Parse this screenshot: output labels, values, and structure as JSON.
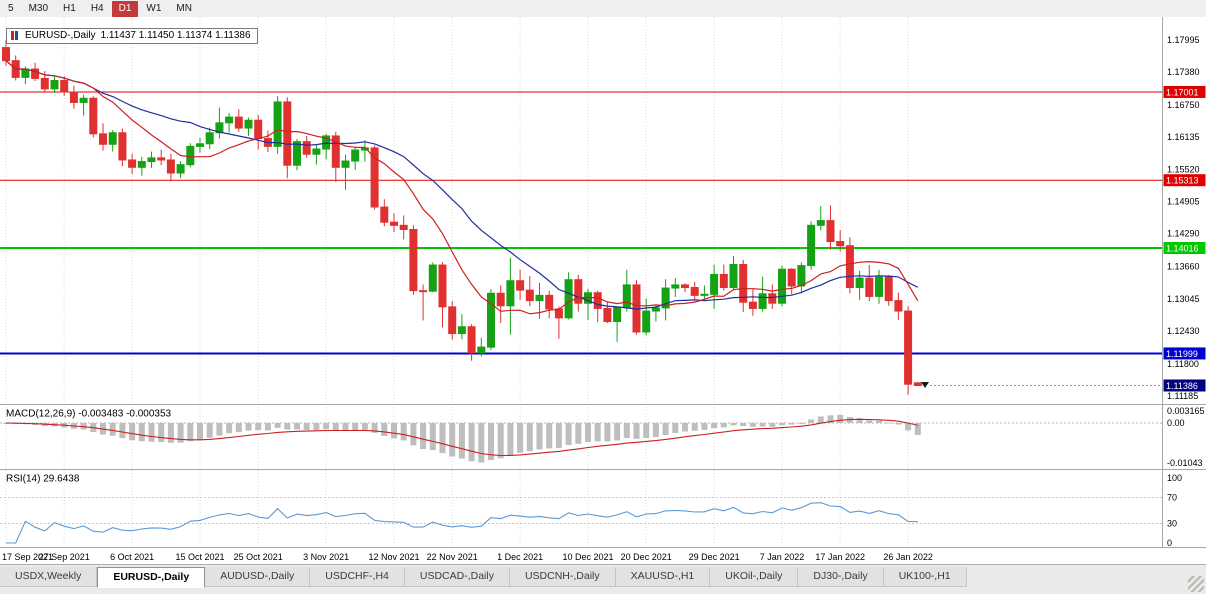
{
  "toolbar": {
    "buttons": [
      {
        "label": "5",
        "active": false
      },
      {
        "label": "M30",
        "active": false
      },
      {
        "label": "H1",
        "active": false
      },
      {
        "label": "H4",
        "active": false
      },
      {
        "label": "D1",
        "active": true
      },
      {
        "label": "W1",
        "active": false
      },
      {
        "label": "MN",
        "active": false
      }
    ]
  },
  "tooltip": {
    "symbol": "EURUSD-,Daily",
    "ohlc": "1.11437 1.11450 1.11374 1.11386"
  },
  "tabs": [
    {
      "label": "USDX,Weekly",
      "active": false
    },
    {
      "label": "EURUSD-,Daily",
      "active": true
    },
    {
      "label": "AUDUSD-,Daily",
      "active": false
    },
    {
      "label": "USDCHF-,H4",
      "active": false
    },
    {
      "label": "USDCAD-,Daily",
      "active": false
    },
    {
      "label": "USDCNH-,Daily",
      "active": false
    },
    {
      "label": "XAUUSD-,H1",
      "active": false
    },
    {
      "label": "UKOil-,Daily",
      "active": false
    },
    {
      "label": "DJ30-,Daily",
      "active": false
    },
    {
      "label": "UK100-,H1",
      "active": false
    }
  ],
  "colors": {
    "candle_up": "#15A215",
    "candle_down": "#E03030",
    "ma_fast": "#CC2020",
    "ma_slow": "#1F2DA0",
    "macd_hist": "#BEBEBE",
    "macd_signal": "#CC2020",
    "rsi_line": "#5B9BD5",
    "grid": "#DCDCDC",
    "separator": "#A8A8A8",
    "axis_text": "#000000"
  },
  "chart_data": {
    "type": "candlestick",
    "symbol": "EURUSD-",
    "period": "Daily",
    "current_bar": {
      "open": "1.11437",
      "high": "1.11450",
      "low": "1.11374",
      "close": "1.11386"
    },
    "price_axis": {
      "labels": [
        "1.17995",
        "1.17380",
        "1.16750",
        "1.16135",
        "1.15520",
        "1.14905",
        "1.14290",
        "1.13660",
        "1.13045",
        "1.12430",
        "1.11800",
        "1.11185"
      ],
      "top_value": 1.17995,
      "bottom_value": 1.11185
    },
    "levels": [
      {
        "value": 1.17001,
        "tag": "1.17001",
        "color": "#E00000",
        "width": 1
      },
      {
        "value": 1.15313,
        "tag": "1.15313",
        "color": "#E00000",
        "width": 1
      },
      {
        "value": 1.14016,
        "tag": "1.14016",
        "color": "#00C800",
        "width": 2
      },
      {
        "value": 1.11999,
        "tag": "1.11999",
        "color": "#0000D2",
        "width": 2
      }
    ],
    "current_price": {
      "value": 1.11386,
      "tag": "1.11386",
      "tag_color": "#000080"
    },
    "moving_averages": [
      {
        "name": "fast",
        "period": 10,
        "color": "#CC2020"
      },
      {
        "name": "slow",
        "period": 20,
        "color": "#1F2DA0"
      }
    ],
    "macd": {
      "title": "MACD(12,26,9)",
      "values": "-0.003483 -0.000353",
      "fast": 12,
      "slow": 26,
      "signal": 9,
      "axis_labels": [
        "0.003165",
        "0.00",
        "-0.01043"
      ],
      "axis_values": [
        0.003165,
        0,
        -0.01043
      ]
    },
    "rsi": {
      "title": "RSI(14)",
      "value": "29.6438",
      "period": 14,
      "axis_labels": [
        "100",
        "70",
        "30",
        "0"
      ],
      "axis_values": [
        100,
        70,
        30,
        0
      ],
      "level_lines": [
        70,
        30
      ]
    },
    "x_labels": [
      {
        "i": 0,
        "t": "17 Sep 2021"
      },
      {
        "i": 6,
        "t": "27 Sep 2021"
      },
      {
        "i": 13,
        "t": "6 Oct 2021"
      },
      {
        "i": 20,
        "t": "15 Oct 2021"
      },
      {
        "i": 26,
        "t": "25 Oct 2021"
      },
      {
        "i": 33,
        "t": "3 Nov 2021"
      },
      {
        "i": 40,
        "t": "12 Nov 2021"
      },
      {
        "i": 46,
        "t": "22 Nov 2021"
      },
      {
        "i": 53,
        "t": "1 Dec 2021"
      },
      {
        "i": 60,
        "t": "10 Dec 2021"
      },
      {
        "i": 66,
        "t": "20 Dec 2021"
      },
      {
        "i": 73,
        "t": "29 Dec 2021"
      },
      {
        "i": 80,
        "t": "7 Jan 2022"
      },
      {
        "i": 86,
        "t": "17 Jan 2022"
      },
      {
        "i": 93,
        "t": "26 Jan 2022"
      }
    ],
    "candles": [
      [
        1.1785,
        1.1799,
        1.175,
        1.176
      ],
      [
        1.176,
        1.177,
        1.1722,
        1.1728
      ],
      [
        1.1728,
        1.1749,
        1.1715,
        1.1744
      ],
      [
        1.1744,
        1.1756,
        1.1721,
        1.1726
      ],
      [
        1.1726,
        1.174,
        1.17,
        1.1706
      ],
      [
        1.1706,
        1.173,
        1.1698,
        1.1722
      ],
      [
        1.1722,
        1.173,
        1.1693,
        1.17
      ],
      [
        1.17,
        1.1712,
        1.1668,
        1.168
      ],
      [
        1.168,
        1.1695,
        1.1655,
        1.1688
      ],
      [
        1.1688,
        1.1692,
        1.1613,
        1.162
      ],
      [
        1.162,
        1.164,
        1.1588,
        1.16
      ],
      [
        1.16,
        1.1627,
        1.1586,
        1.1622
      ],
      [
        1.1622,
        1.163,
        1.1558,
        1.157
      ],
      [
        1.157,
        1.1582,
        1.1543,
        1.1556
      ],
      [
        1.1556,
        1.1576,
        1.154,
        1.1567
      ],
      [
        1.1567,
        1.1586,
        1.1555,
        1.1574
      ],
      [
        1.1574,
        1.159,
        1.156,
        1.157
      ],
      [
        1.157,
        1.1582,
        1.1529,
        1.1545
      ],
      [
        1.1545,
        1.1568,
        1.1535,
        1.1561
      ],
      [
        1.1561,
        1.1602,
        1.1556,
        1.1596
      ],
      [
        1.1596,
        1.1612,
        1.1584,
        1.1601
      ],
      [
        1.1601,
        1.1632,
        1.1591,
        1.1622
      ],
      [
        1.1622,
        1.167,
        1.1611,
        1.1641
      ],
      [
        1.1641,
        1.166,
        1.1622,
        1.1652
      ],
      [
        1.1652,
        1.1667,
        1.1624,
        1.1631
      ],
      [
        1.1631,
        1.1651,
        1.1616,
        1.1646
      ],
      [
        1.1646,
        1.1656,
        1.159,
        1.1611
      ],
      [
        1.1611,
        1.1626,
        1.1585,
        1.1596
      ],
      [
        1.1596,
        1.1692,
        1.1582,
        1.1681
      ],
      [
        1.1681,
        1.169,
        1.1535,
        1.156
      ],
      [
        1.156,
        1.161,
        1.155,
        1.1605
      ],
      [
        1.1605,
        1.1616,
        1.1574,
        1.1581
      ],
      [
        1.1581,
        1.16,
        1.1561,
        1.1591
      ],
      [
        1.1591,
        1.162,
        1.1571,
        1.1616
      ],
      [
        1.1616,
        1.1624,
        1.1528,
        1.1556
      ],
      [
        1.1556,
        1.158,
        1.1513,
        1.1568
      ],
      [
        1.1568,
        1.1595,
        1.1551,
        1.1589
      ],
      [
        1.1589,
        1.1608,
        1.1567,
        1.1593
      ],
      [
        1.1593,
        1.1598,
        1.1475,
        1.148
      ],
      [
        1.148,
        1.1495,
        1.1443,
        1.1451
      ],
      [
        1.1451,
        1.1468,
        1.1432,
        1.1445
      ],
      [
        1.1445,
        1.1464,
        1.1418,
        1.1437
      ],
      [
        1.1437,
        1.1445,
        1.1312,
        1.132
      ],
      [
        1.132,
        1.1332,
        1.1263,
        1.1319
      ],
      [
        1.1319,
        1.1374,
        1.1317,
        1.1369
      ],
      [
        1.1369,
        1.1374,
        1.125,
        1.1289
      ],
      [
        1.1289,
        1.13,
        1.1226,
        1.1238
      ],
      [
        1.1238,
        1.1275,
        1.1227,
        1.1251
      ],
      [
        1.1251,
        1.1256,
        1.1186,
        1.1201
      ],
      [
        1.1201,
        1.123,
        1.1194,
        1.1212
      ],
      [
        1.1212,
        1.1323,
        1.1206,
        1.1315
      ],
      [
        1.1315,
        1.133,
        1.1258,
        1.1291
      ],
      [
        1.1291,
        1.1383,
        1.1236,
        1.1339
      ],
      [
        1.1339,
        1.136,
        1.1302,
        1.1321
      ],
      [
        1.1321,
        1.1348,
        1.129,
        1.1301
      ],
      [
        1.1301,
        1.1335,
        1.1266,
        1.1311
      ],
      [
        1.1311,
        1.132,
        1.1267,
        1.1285
      ],
      [
        1.1285,
        1.129,
        1.1228,
        1.1268
      ],
      [
        1.1268,
        1.1355,
        1.1265,
        1.1341
      ],
      [
        1.1341,
        1.135,
        1.128,
        1.1296
      ],
      [
        1.1296,
        1.1324,
        1.1264,
        1.1316
      ],
      [
        1.1316,
        1.132,
        1.126,
        1.1286
      ],
      [
        1.1286,
        1.1298,
        1.1258,
        1.1261
      ],
      [
        1.1261,
        1.129,
        1.1222,
        1.1288
      ],
      [
        1.1288,
        1.136,
        1.128,
        1.1331
      ],
      [
        1.1331,
        1.134,
        1.1236,
        1.1241
      ],
      [
        1.1241,
        1.1305,
        1.1235,
        1.1281
      ],
      [
        1.1281,
        1.1292,
        1.1261,
        1.1287
      ],
      [
        1.1287,
        1.1342,
        1.1263,
        1.1325
      ],
      [
        1.1325,
        1.1344,
        1.1308,
        1.1331
      ],
      [
        1.1331,
        1.1334,
        1.1317,
        1.1326
      ],
      [
        1.1326,
        1.1337,
        1.1302,
        1.1311
      ],
      [
        1.1311,
        1.133,
        1.1303,
        1.1313
      ],
      [
        1.1313,
        1.137,
        1.1285,
        1.1351
      ],
      [
        1.1351,
        1.137,
        1.132,
        1.1326
      ],
      [
        1.1326,
        1.1386,
        1.1321,
        1.137
      ],
      [
        1.137,
        1.1379,
        1.1279,
        1.1298
      ],
      [
        1.1298,
        1.1323,
        1.1272,
        1.1286
      ],
      [
        1.1286,
        1.1347,
        1.128,
        1.1314
      ],
      [
        1.1314,
        1.1332,
        1.1285,
        1.1296
      ],
      [
        1.1296,
        1.1368,
        1.129,
        1.1361
      ],
      [
        1.1361,
        1.1363,
        1.1313,
        1.1329
      ],
      [
        1.1329,
        1.1374,
        1.1315,
        1.1368
      ],
      [
        1.1368,
        1.1453,
        1.136,
        1.1445
      ],
      [
        1.1445,
        1.1482,
        1.1435,
        1.1454
      ],
      [
        1.1454,
        1.1483,
        1.1398,
        1.1414
      ],
      [
        1.1414,
        1.1436,
        1.1395,
        1.1406
      ],
      [
        1.1406,
        1.1422,
        1.1315,
        1.1326
      ],
      [
        1.1326,
        1.1358,
        1.1302,
        1.1344
      ],
      [
        1.1344,
        1.1369,
        1.13,
        1.1309
      ],
      [
        1.1309,
        1.136,
        1.1295,
        1.1346
      ],
      [
        1.1346,
        1.135,
        1.1291,
        1.1301
      ],
      [
        1.1301,
        1.1316,
        1.1264,
        1.1281
      ],
      [
        1.1281,
        1.129,
        1.1121,
        1.1141
      ],
      [
        1.11437,
        1.1145,
        1.11374,
        1.11386
      ]
    ]
  }
}
